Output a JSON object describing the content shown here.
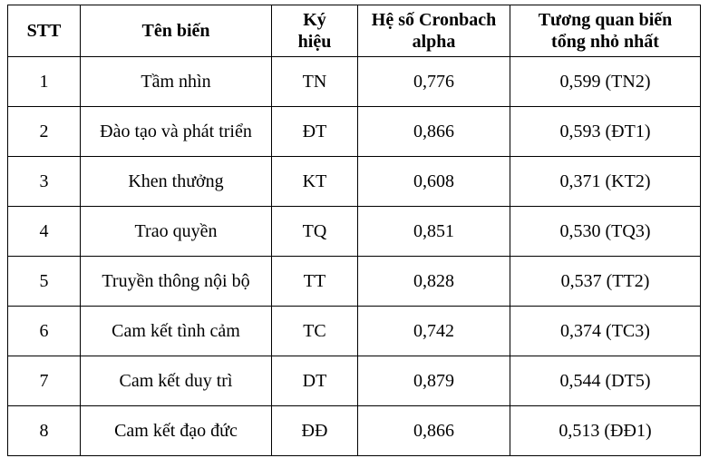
{
  "table": {
    "header": [
      "STT",
      "Tên biến",
      "Ký hiệu",
      "Hệ số Cronbach alpha",
      "Tương quan biến tổng nhỏ nhất"
    ],
    "rows": [
      [
        "1",
        "Tầm nhìn",
        "TN",
        "0,776",
        "0,599 (TN2)"
      ],
      [
        "2",
        "Đào tạo và phát triển",
        "ĐT",
        "0,866",
        "0,593 (ĐT1)"
      ],
      [
        "3",
        "Khen thưởng",
        "KT",
        "0,608",
        "0,371 (KT2)"
      ],
      [
        "4",
        "Trao quyền",
        "TQ",
        "0,851",
        "0,530 (TQ3)"
      ],
      [
        "5",
        "Truyền thông nội bộ",
        "TT",
        "0,828",
        "0,537 (TT2)"
      ],
      [
        "6",
        "Cam kết tình cảm",
        "TC",
        "0,742",
        "0,374 (TC3)"
      ],
      [
        "7",
        "Cam kết duy trì",
        "DT",
        "0,879",
        "0,544 (DT5)"
      ],
      [
        "8",
        "Cam kết đạo đức",
        "ĐĐ",
        "0,866",
        "0,513 (ĐĐ1)"
      ]
    ]
  }
}
